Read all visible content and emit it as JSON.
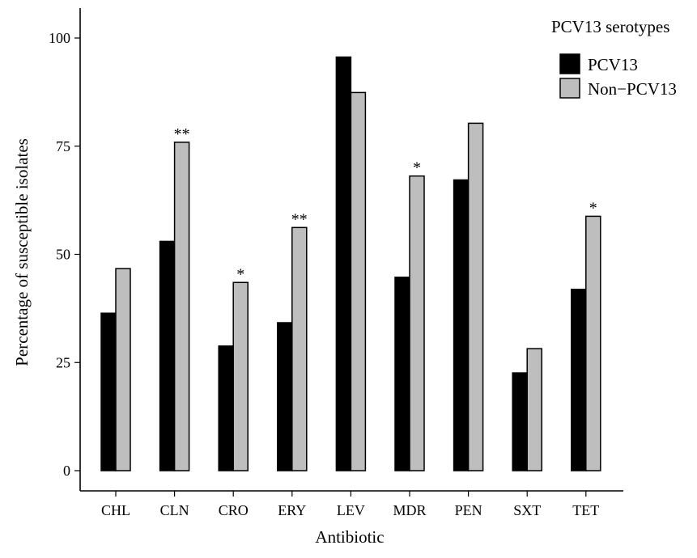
{
  "chart_data": {
    "type": "bar",
    "xlabel": "Antibiotic",
    "ylabel": "Percentage of susceptible isolates",
    "ylim": [
      0,
      100
    ],
    "yticks": [
      0,
      25,
      50,
      75,
      100
    ],
    "ytick_labels": [
      "0",
      "25",
      "50",
      "75",
      "100"
    ],
    "categories": [
      "CHL",
      "CLN",
      "CRO",
      "ERY",
      "LEV",
      "MDR",
      "PEN",
      "SXT",
      "TET"
    ],
    "series": [
      {
        "name": "PCV13",
        "color": "#000000",
        "values": [
          36.4,
          53.0,
          28.8,
          34.2,
          95.6,
          44.7,
          67.2,
          22.6,
          41.9
        ]
      },
      {
        "name": "Non−PCV13",
        "color": "#bebebe",
        "values": [
          46.7,
          75.9,
          43.5,
          56.2,
          87.4,
          68.1,
          80.3,
          28.2,
          58.8
        ]
      }
    ],
    "significance": [
      "",
      "**",
      "*",
      "**",
      "",
      "*",
      "",
      "",
      "*"
    ],
    "legend": {
      "title": "PCV13 serotypes",
      "position": "top-right"
    },
    "grid": false
  }
}
